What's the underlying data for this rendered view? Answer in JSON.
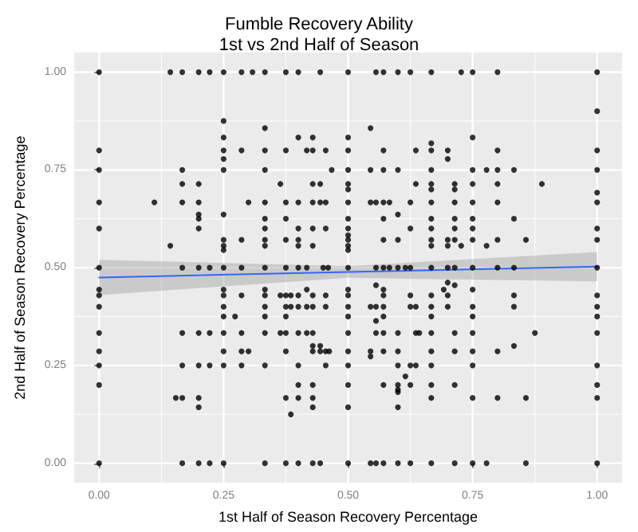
{
  "chart_data": {
    "type": "scatter",
    "title": "Fumble Recovery Ability",
    "subtitle": "1st vs 2nd Half of Season",
    "xlabel": "1st Half of Season Recovery Percentage",
    "ylabel": "2nd Half of Season Recovery Percentage",
    "xlim": [
      -0.05,
      1.05
    ],
    "ylim": [
      -0.05,
      1.05
    ],
    "xticks": [
      {
        "value": 0,
        "label": "0.00"
      },
      {
        "value": 0.25,
        "label": "0.25"
      },
      {
        "value": 0.5,
        "label": "0.50"
      },
      {
        "value": 0.75,
        "label": "0.75"
      },
      {
        "value": 1,
        "label": "1.00"
      }
    ],
    "yticks": [
      {
        "value": 0,
        "label": "0.00"
      },
      {
        "value": 0.25,
        "label": "0.25"
      },
      {
        "value": 0.5,
        "label": "0.50"
      },
      {
        "value": 0.75,
        "label": "0.75"
      },
      {
        "value": 1,
        "label": "1.00"
      }
    ],
    "grid": true,
    "marker": "circle",
    "series": [
      {
        "color": "#000000",
        "x": [
          0,
          0.143,
          0.167,
          0.2,
          0.222,
          0.25,
          0.286,
          0.308,
          0.333,
          0.375,
          0.4,
          0.444,
          0.5,
          0.556,
          0.571,
          0.6,
          0.625,
          0.667,
          0.727,
          0.75,
          0.8,
          1,
          1,
          0.25,
          0.333,
          0.545,
          0.25,
          0.4,
          0.429,
          0.5,
          0.75,
          0.667,
          0,
          0.25,
          0.286,
          0.333,
          0.375,
          0.417,
          0.429,
          0.455,
          0.5,
          0.571,
          0.636,
          0.667,
          0.7,
          0.8,
          1,
          0.25,
          0.7,
          0,
          0.167,
          0.25,
          0.333,
          0.467,
          0.5,
          0.545,
          0.571,
          0.6,
          0.667,
          0.75,
          0.778,
          0.8,
          0.833,
          1,
          0.167,
          0.2,
          0.364,
          0.429,
          0.444,
          0.5,
          0.636,
          0.667,
          0.714,
          0.75,
          0.8,
          0.889,
          0.5,
          0.667,
          0.714,
          1,
          0,
          0.111,
          0.167,
          0.2,
          0.3,
          0.333,
          0.375,
          0.4,
          0.429,
          0.444,
          0.455,
          0.5,
          0.545,
          0.556,
          0.571,
          0.583,
          0.625,
          0.667,
          0.714,
          0.75,
          0.8,
          1,
          0.2,
          0.25,
          0.6,
          0.2,
          0.333,
          0.375,
          0.5,
          0.571,
          0.667,
          0.714,
          0.75,
          0.833,
          0,
          0.2,
          0.333,
          0.4,
          0.429,
          0.455,
          0.5,
          0.625,
          0.667,
          0.714,
          0.75,
          1,
          0.5,
          0.25,
          0.286,
          0.333,
          0.375,
          0.4,
          0.5,
          0.571,
          0.6,
          0.667,
          0.7,
          0.714,
          0.75,
          0.8,
          0.857,
          1,
          0.143,
          0.25,
          0.333,
          0.4,
          0.429,
          0.5,
          0.667,
          0.7,
          0.727,
          0.778,
          0.25,
          0.5,
          0,
          0.167,
          0.2,
          0.222,
          0.25,
          0.286,
          0.333,
          0.375,
          0.4,
          0.417,
          0.45,
          0.46,
          0.5,
          0.556,
          0.571,
          0.583,
          0.6,
          0.615,
          0.625,
          0.667,
          0.7,
          0.714,
          0.75,
          0.8,
          0.833,
          1,
          0.7,
          0.556,
          0.714,
          0,
          0.25,
          0.333,
          0.417,
          0.5,
          0.571,
          0.692,
          0.75,
          0,
          0.25,
          0.286,
          0.333,
          0.364,
          0.375,
          0.385,
          0.4,
          0.429,
          0.455,
          0.5,
          0.571,
          0.625,
          0.667,
          0.7,
          0.833,
          1,
          0,
          0.25,
          0.333,
          0.375,
          0.385,
          0.4,
          0.417,
          0.429,
          0.455,
          0.5,
          0.545,
          0.556,
          0.571,
          0.625,
          0.636,
          0.667,
          0.7,
          0.75,
          0.833,
          1,
          0.25,
          0.273,
          0.333,
          0.375,
          0.5,
          0.571,
          0.667,
          0.75,
          1,
          0.556,
          0,
          0.167,
          0.2,
          0.222,
          0.25,
          0.286,
          0.333,
          0.364,
          0.375,
          0.4,
          0.417,
          0.429,
          0.5,
          0.556,
          0.571,
          0.6,
          0.636,
          0.643,
          0.667,
          0.714,
          0.75,
          0.875,
          1,
          0.429,
          0.444,
          0.833,
          0,
          0.25,
          0.286,
          0.3,
          0.375,
          0.429,
          0.444,
          0.455,
          0.462,
          0.5,
          0.545,
          0.571,
          0.6,
          0.667,
          0.714,
          0.75,
          0.8,
          0.545,
          0,
          0.167,
          0.2,
          0.222,
          0.25,
          0.286,
          0.333,
          0.4,
          0.455,
          0.5,
          0.6,
          0.625,
          0.636,
          0.667,
          0.75,
          1,
          0.615,
          0,
          0.4,
          0.429,
          0.5,
          0.571,
          0.6,
          0.625,
          0.667,
          0.714,
          1,
          0.6,
          0.6,
          0.154,
          0.167,
          0.2,
          0.375,
          0.4,
          0.429,
          0.667,
          0.75,
          0.8,
          0.857,
          1,
          0.2,
          0.429,
          0.5,
          0.6,
          0.385,
          0,
          0.167,
          0.2,
          0.222,
          0.25,
          0.333,
          0.375,
          0.4,
          0.429,
          0.444,
          0.5,
          0.545,
          0.556,
          0.571,
          0.6,
          0.625,
          0.667,
          0.714,
          0.75,
          0.778,
          0.857,
          1
        ],
        "values": [
          1,
          1,
          1,
          1,
          1,
          1,
          1,
          1,
          1,
          1,
          1,
          1,
          1,
          1,
          1,
          1,
          1,
          1,
          1,
          1,
          1,
          1,
          0.9,
          0.875,
          0.857,
          0.857,
          0.833,
          0.833,
          0.833,
          0.833,
          0.833,
          0.818,
          0.8,
          0.8,
          0.8,
          0.8,
          0.8,
          0.8,
          0.8,
          0.8,
          0.8,
          0.8,
          0.8,
          0.8,
          0.8,
          0.8,
          0.8,
          0.778,
          0.778,
          0.75,
          0.75,
          0.75,
          0.75,
          0.75,
          0.75,
          0.75,
          0.75,
          0.75,
          0.75,
          0.75,
          0.75,
          0.75,
          0.75,
          0.75,
          0.714,
          0.714,
          0.714,
          0.714,
          0.714,
          0.714,
          0.714,
          0.714,
          0.714,
          0.714,
          0.714,
          0.714,
          0.7,
          0.7,
          0.7,
          0.692,
          0.667,
          0.667,
          0.667,
          0.667,
          0.667,
          0.667,
          0.667,
          0.667,
          0.667,
          0.667,
          0.667,
          0.667,
          0.667,
          0.667,
          0.667,
          0.667,
          0.667,
          0.667,
          0.667,
          0.667,
          0.667,
          0.667,
          0.636,
          0.636,
          0.636,
          0.625,
          0.625,
          0.625,
          0.625,
          0.625,
          0.625,
          0.625,
          0.625,
          0.625,
          0.6,
          0.6,
          0.6,
          0.6,
          0.6,
          0.6,
          0.6,
          0.6,
          0.6,
          0.6,
          0.6,
          0.6,
          0.583,
          0.571,
          0.571,
          0.571,
          0.571,
          0.571,
          0.571,
          0.571,
          0.571,
          0.571,
          0.571,
          0.571,
          0.571,
          0.571,
          0.571,
          0.571,
          0.556,
          0.556,
          0.556,
          0.556,
          0.556,
          0.556,
          0.556,
          0.556,
          0.556,
          0.556,
          0.545,
          0.545,
          0.5,
          0.5,
          0.5,
          0.5,
          0.5,
          0.5,
          0.5,
          0.5,
          0.5,
          0.5,
          0.5,
          0.5,
          0.5,
          0.5,
          0.5,
          0.5,
          0.5,
          0.5,
          0.5,
          0.5,
          0.5,
          0.5,
          0.5,
          0.5,
          0.5,
          0.5,
          0.462,
          0.455,
          0.455,
          0.444,
          0.444,
          0.444,
          0.444,
          0.444,
          0.444,
          0.444,
          0.444,
          0.429,
          0.429,
          0.429,
          0.429,
          0.429,
          0.429,
          0.429,
          0.429,
          0.429,
          0.429,
          0.429,
          0.429,
          0.429,
          0.429,
          0.429,
          0.429,
          0.429,
          0.4,
          0.4,
          0.4,
          0.4,
          0.4,
          0.4,
          0.4,
          0.4,
          0.4,
          0.4,
          0.4,
          0.4,
          0.4,
          0.4,
          0.4,
          0.4,
          0.4,
          0.4,
          0.4,
          0.4,
          0.375,
          0.375,
          0.375,
          0.375,
          0.375,
          0.375,
          0.375,
          0.375,
          0.375,
          0.364,
          0.333,
          0.333,
          0.333,
          0.333,
          0.333,
          0.333,
          0.333,
          0.333,
          0.333,
          0.333,
          0.333,
          0.333,
          0.333,
          0.333,
          0.333,
          0.333,
          0.333,
          0.333,
          0.333,
          0.333,
          0.333,
          0.333,
          0.333,
          0.3,
          0.3,
          0.3,
          0.286,
          0.286,
          0.286,
          0.286,
          0.286,
          0.286,
          0.286,
          0.286,
          0.286,
          0.286,
          0.286,
          0.286,
          0.286,
          0.286,
          0.286,
          0.286,
          0.286,
          0.273,
          0.25,
          0.25,
          0.25,
          0.25,
          0.25,
          0.25,
          0.25,
          0.25,
          0.25,
          0.25,
          0.25,
          0.25,
          0.25,
          0.25,
          0.25,
          0.25,
          0.222,
          0.2,
          0.2,
          0.2,
          0.2,
          0.2,
          0.2,
          0.2,
          0.2,
          0.2,
          0.2,
          0.188,
          0.182,
          0.167,
          0.167,
          0.167,
          0.167,
          0.167,
          0.167,
          0.167,
          0.167,
          0.167,
          0.167,
          0.167,
          0.143,
          0.143,
          0.143,
          0.143,
          0.125,
          0,
          0,
          0,
          0,
          0,
          0,
          0,
          0,
          0,
          0,
          0,
          0,
          0,
          0,
          0,
          0,
          0,
          0,
          0,
          0,
          0,
          0
        ]
      },
      {
        "type": "line",
        "color": "#3366ff",
        "marker": "none",
        "x": [
          0,
          0.5,
          1
        ],
        "values": [
          0.475,
          0.489,
          0.503
        ],
        "lower": [
          0.43,
          0.474,
          0.465
        ],
        "upper": [
          0.52,
          0.504,
          0.54
        ]
      }
    ]
  }
}
